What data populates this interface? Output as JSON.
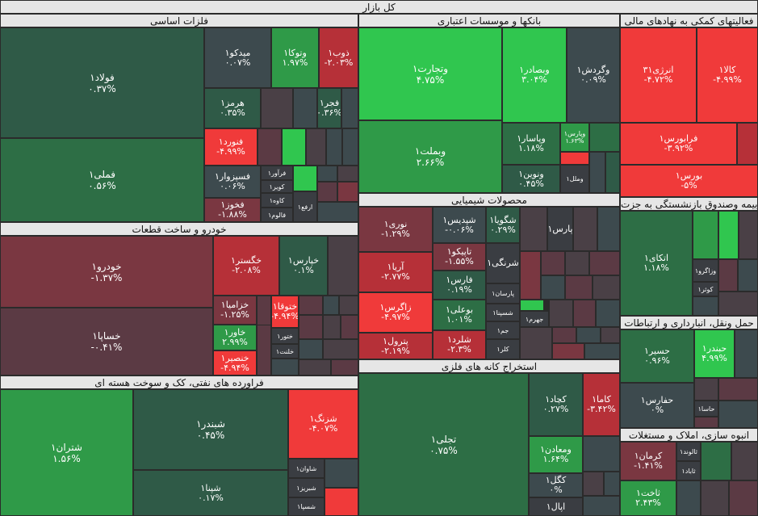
{
  "chart_data": {
    "type": "treemap",
    "title": "کل بازار",
    "sectors": [
      {
        "name": "فلزات اساسی",
        "tiles": [
          {
            "name": "فولاد۱",
            "value": "۰.۳۷%"
          },
          {
            "name": "فملی۱",
            "value": "۰.۵۶%"
          },
          {
            "name": "میدکو۱",
            "value": "۰.۰۷%"
          },
          {
            "name": "وتوکا۱",
            "value": "۱.۹۷%"
          },
          {
            "name": "ذوب۱",
            "value": "-۲.۰۳%"
          },
          {
            "name": "هرمز۱",
            "value": "۰.۳۵%"
          },
          {
            "name": "فجر۱",
            "value": "۰.۳۶%"
          },
          {
            "name": "فنورد۱",
            "value": "-۴.۹۹%"
          },
          {
            "name": "فسپزوار۱",
            "value": "۰.۰۶%"
          },
          {
            "name": "فخوز۱",
            "value": "-۱.۸۸%"
          },
          {
            "name": "فرآور۱",
            "value": ""
          },
          {
            "name": "کویر۱",
            "value": ""
          },
          {
            "name": "کاوه۱",
            "value": ""
          },
          {
            "name": "فالوم۱",
            "value": ""
          },
          {
            "name": "ارفع۱",
            "value": ""
          }
        ]
      },
      {
        "name": "بانکها و موسسات اعتباری",
        "tiles": [
          {
            "name": "وتجارت۱",
            "value": "۴.۷۵%"
          },
          {
            "name": "وبصادر۱",
            "value": "۳.۰۴%"
          },
          {
            "name": "وگردش۱",
            "value": "۰.۰۹%"
          },
          {
            "name": "وبملت۱",
            "value": "۲.۶۶%"
          },
          {
            "name": "وپاسار۱",
            "value": "۱.۱۸%"
          },
          {
            "name": "وپارس۱",
            "value": "۱.۶۳%"
          },
          {
            "name": "ونوین۱",
            "value": "۰.۴۵%"
          },
          {
            "name": "وملل۱",
            "value": ""
          }
        ]
      },
      {
        "name": "فعالیتهای کمکی به نهادهای مالی",
        "tiles": [
          {
            "name": "انرژی۳۱",
            "value": "-۴.۷۲%"
          },
          {
            "name": "کالا۱",
            "value": "-۴.۹۹%"
          },
          {
            "name": "فرابورس۱",
            "value": "-۳.۹۲%"
          },
          {
            "name": "بورس۱",
            "value": "-۵%"
          }
        ]
      },
      {
        "name": "بیمه وصندوق بازنشستگی به جزت",
        "tiles": [
          {
            "name": "اتکای۱",
            "value": "۱.۱۸%"
          },
          {
            "name": "وزاگرو۱",
            "value": ""
          },
          {
            "name": "کوثر۱",
            "value": ""
          }
        ]
      },
      {
        "name": "حمل ونقل، انبارداری و ارتباطات",
        "tiles": [
          {
            "name": "حسیر۱",
            "value": "۰.۹۶%"
          },
          {
            "name": "حبندر۱",
            "value": "۴.۹۹%"
          },
          {
            "name": "حفارس۱",
            "value": "۰%"
          },
          {
            "name": "حاسا۱",
            "value": ""
          }
        ]
      },
      {
        "name": "انبوه سازی، املاک و مستغلات",
        "tiles": [
          {
            "name": "کرمان۱",
            "value": "-۱.۴۱%"
          },
          {
            "name": "ثالوند۱",
            "value": ""
          },
          {
            "name": "ثاباد۱",
            "value": ""
          },
          {
            "name": "ثاخت۱",
            "value": "۲.۴۳%"
          }
        ]
      },
      {
        "name": "خودرو و ساخت قطعات",
        "tiles": [
          {
            "name": "خودرو۱",
            "value": "-۱.۳۷%"
          },
          {
            "name": "خگستر۱",
            "value": "-۲.۰۸%"
          },
          {
            "name": "خپارس۱",
            "value": "۰.۱%"
          },
          {
            "name": "خساپا۱",
            "value": "-۰.۴۱%"
          },
          {
            "name": "خزامیا۱",
            "value": "-۱.۲۵%"
          },
          {
            "name": "ختوقا۱",
            "value": "-۴.۹۴%"
          },
          {
            "name": "خاور۱",
            "value": "۲.۹۹%"
          },
          {
            "name": "ختور۱",
            "value": ""
          },
          {
            "name": "خنصیر۱",
            "value": "-۴.۹۴%"
          },
          {
            "name": "خلنت۱",
            "value": ""
          }
        ]
      },
      {
        "name": "محصولات شیمیایی",
        "tiles": [
          {
            "name": "نوری۱",
            "value": "-۱.۲۹%"
          },
          {
            "name": "شپدیس۱",
            "value": "-۰.۰۶%"
          },
          {
            "name": "شگویا۱",
            "value": "۰.۲۹%"
          },
          {
            "name": "پارس۱",
            "value": ""
          },
          {
            "name": "تاپیکو۱",
            "value": "-۱.۵۵%"
          },
          {
            "name": "شرنگی۱",
            "value": ""
          },
          {
            "name": "آریا۱",
            "value": "-۲.۷۷%"
          },
          {
            "name": "فارس۱",
            "value": "۰.۱۹%"
          },
          {
            "name": "پارسان۱",
            "value": ""
          },
          {
            "name": "شسپنا۱",
            "value": ""
          },
          {
            "name": "زاگرس۱",
            "value": "-۴.۹۷%"
          },
          {
            "name": "بوعلی۱",
            "value": "۱.۰۱%"
          },
          {
            "name": "جهرم۱",
            "value": ""
          },
          {
            "name": "جم۱",
            "value": ""
          },
          {
            "name": "پترول۱",
            "value": "-۲.۱۹%"
          },
          {
            "name": "شلرد۱",
            "value": "-۲.۳%"
          },
          {
            "name": "کلر۱",
            "value": ""
          }
        ]
      },
      {
        "name": "استخراج کانه های فلزی",
        "tiles": [
          {
            "name": "تجلی۱",
            "value": "۰.۷۵%"
          },
          {
            "name": "کچاد۱",
            "value": "۰.۲۷%"
          },
          {
            "name": "کاما۱",
            "value": "-۳.۴۲%"
          },
          {
            "name": "ومعادن۱",
            "value": "۱.۶۴%"
          },
          {
            "name": "کگل۱",
            "value": "۰%"
          },
          {
            "name": "اپال۱",
            "value": ""
          }
        ]
      },
      {
        "name": "فراورده های نفتی، کک و سوخت هسته ای",
        "tiles": [
          {
            "name": "شتران۱",
            "value": "۱.۵۶%"
          },
          {
            "name": "شبندر۱",
            "value": "۰.۴۵%"
          },
          {
            "name": "شزنگ۱",
            "value": "-۴.۰۷%"
          },
          {
            "name": "شپنا۱",
            "value": "۰.۱۷%"
          },
          {
            "name": "شاوان۱",
            "value": ""
          },
          {
            "name": "شبریز۱",
            "value": ""
          },
          {
            "name": "شسپا۱",
            "value": ""
          }
        ]
      }
    ]
  }
}
